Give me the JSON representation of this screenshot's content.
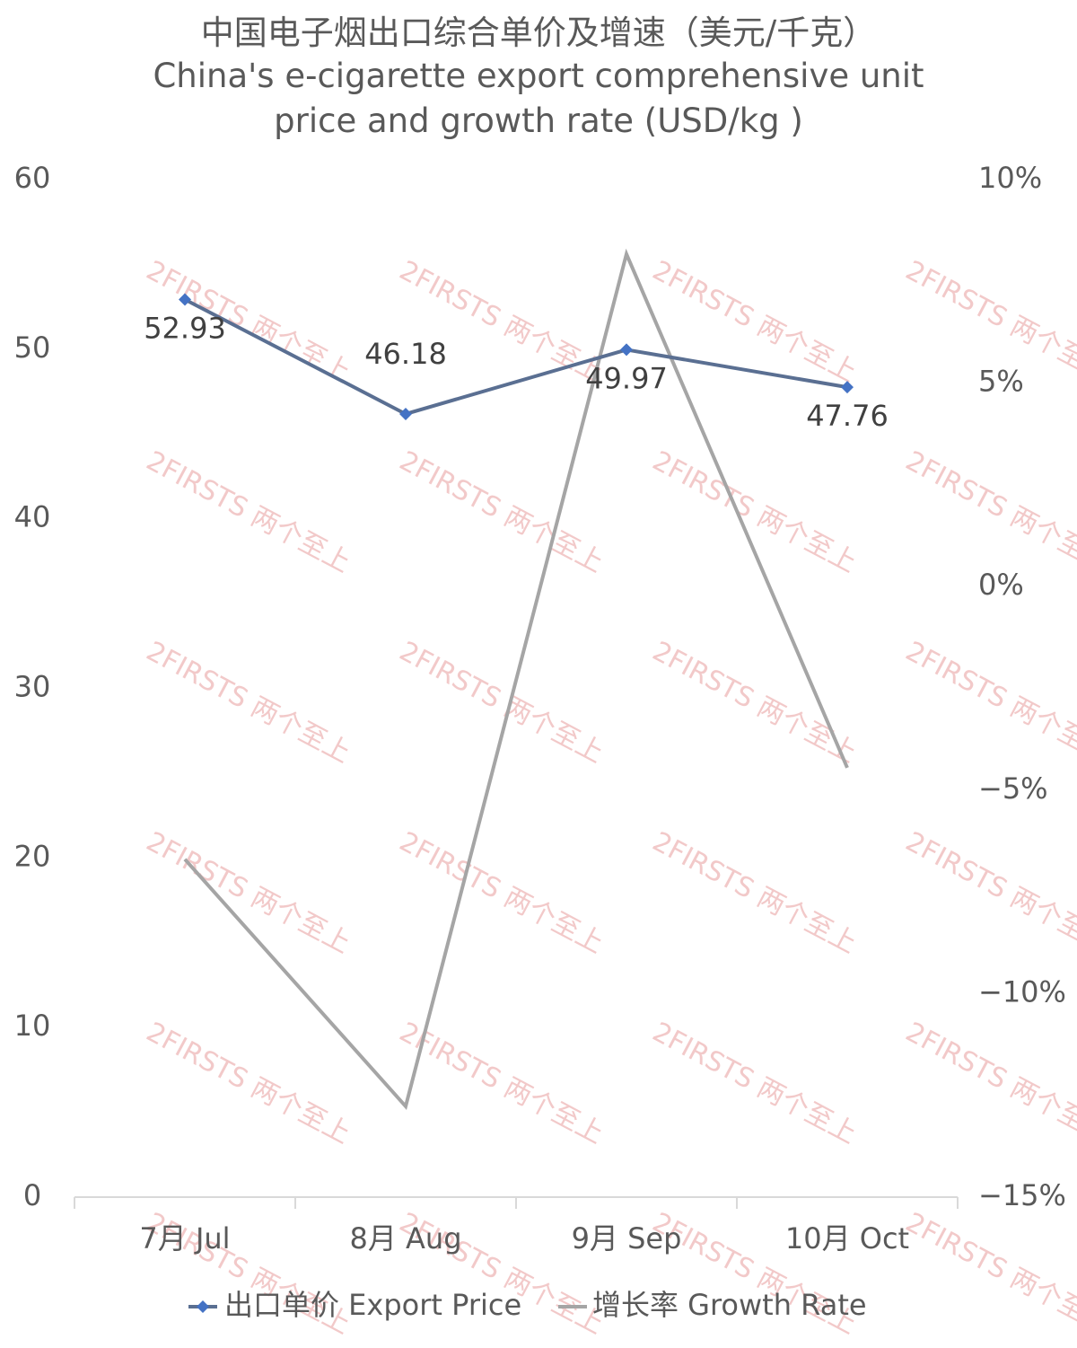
{
  "chart_data": {
    "type": "line",
    "title": "中国电子烟出口综合单价及增速（美元/千克）",
    "subtitle": "China's e-cigarette export comprehensive unit price and growth rate (USD/kg )",
    "watermark": "2FIRSTS 两个至上",
    "categories": [
      "7月 Jul",
      "8月 Aug",
      "9月 Sep",
      "10月 Oct"
    ],
    "series": [
      {
        "name": "出口单价 Export Price",
        "color": "#5a6f92",
        "marker_color": "#4472c4",
        "values": [
          52.93,
          46.18,
          49.97,
          47.76
        ],
        "data_labels": true
      },
      {
        "name": "增长率 Growth Rate",
        "color": "#a5a5a5",
        "axis": "y2",
        "values": [
          -6.7,
          -12.77,
          8.17,
          -4.45
        ]
      }
    ],
    "ylim": [
      0,
      60
    ],
    "yticks": [
      0,
      10,
      20,
      30,
      40,
      50,
      60
    ],
    "y2lim": [
      -15,
      10
    ],
    "y2ticks": [
      {
        "value": -15,
        "label": "−15%"
      },
      {
        "value": -10,
        "label": "−10%"
      },
      {
        "value": -5,
        "label": "−5%"
      },
      {
        "value": 0,
        "label": "0%"
      },
      {
        "value": 5,
        "label": "5%"
      },
      {
        "value": 10,
        "label": "10%"
      }
    ],
    "grid": false,
    "legend": "bottom"
  }
}
